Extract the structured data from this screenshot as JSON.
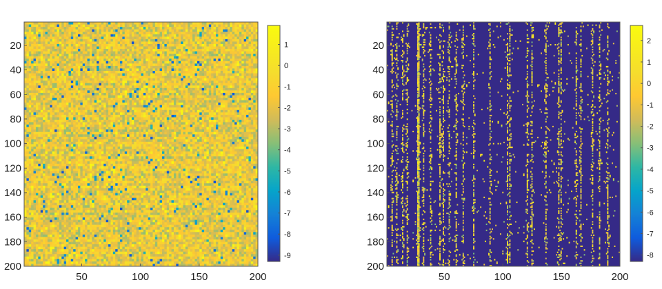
{
  "chart_data": [
    {
      "type": "heatmap",
      "title": "",
      "xlabel": "",
      "ylabel": "",
      "xlim": [
        1,
        200
      ],
      "ylim": [
        1,
        200
      ],
      "y_reversed": true,
      "xticks": [
        50,
        100,
        150,
        200
      ],
      "yticks": [
        20,
        40,
        60,
        80,
        100,
        120,
        140,
        160,
        180,
        200
      ],
      "grid": false,
      "colormap": "parula",
      "color_range": [
        -9.3,
        1.9
      ],
      "colorbar_ticks": [
        1,
        0,
        -1,
        -2,
        -3,
        -4,
        -5,
        -6,
        -7,
        -8,
        -9
      ],
      "colorbar_tick_labels": [
        "1",
        "0",
        "-1",
        "-2",
        "-3",
        "-4",
        "-5",
        "-6",
        "-7",
        "-8",
        "-9"
      ],
      "description_values": {
        "typical_range": [
          -4,
          1
        ],
        "background_mean": -1.8,
        "pattern": "dense noise"
      }
    },
    {
      "type": "heatmap",
      "title": "",
      "xlabel": "",
      "ylabel": "",
      "xlim": [
        1,
        200
      ],
      "ylim": [
        1,
        200
      ],
      "y_reversed": true,
      "xticks": [
        50,
        100,
        150,
        200
      ],
      "yticks": [
        20,
        40,
        60,
        80,
        100,
        120,
        140,
        160,
        180,
        200
      ],
      "grid": false,
      "colormap": "parula",
      "color_range": [
        -8.3,
        2.7
      ],
      "colorbar_ticks": [
        2,
        1,
        0,
        -1,
        -2,
        -3,
        -4,
        -5,
        -6,
        -7,
        -8
      ],
      "colorbar_tick_labels": [
        "2",
        "1",
        "0",
        "-1",
        "-2",
        "-3",
        "-4",
        "-5",
        "-6",
        "-7",
        "-8"
      ],
      "description_values": {
        "background_value": -8,
        "sparse_value_range": [
          -3,
          2
        ],
        "dense_columns": [
          5,
          9,
          14,
          18,
          27,
          28,
          32,
          38,
          46,
          49,
          54,
          60,
          66,
          75,
          89,
          104,
          106,
          121,
          125,
          137,
          148,
          150,
          163,
          167,
          177,
          183,
          190
        ]
      }
    }
  ],
  "colors": {
    "parula_low": "#352a87",
    "parula_mid": "#1fa187",
    "parula_high": "#f9fb0e"
  }
}
